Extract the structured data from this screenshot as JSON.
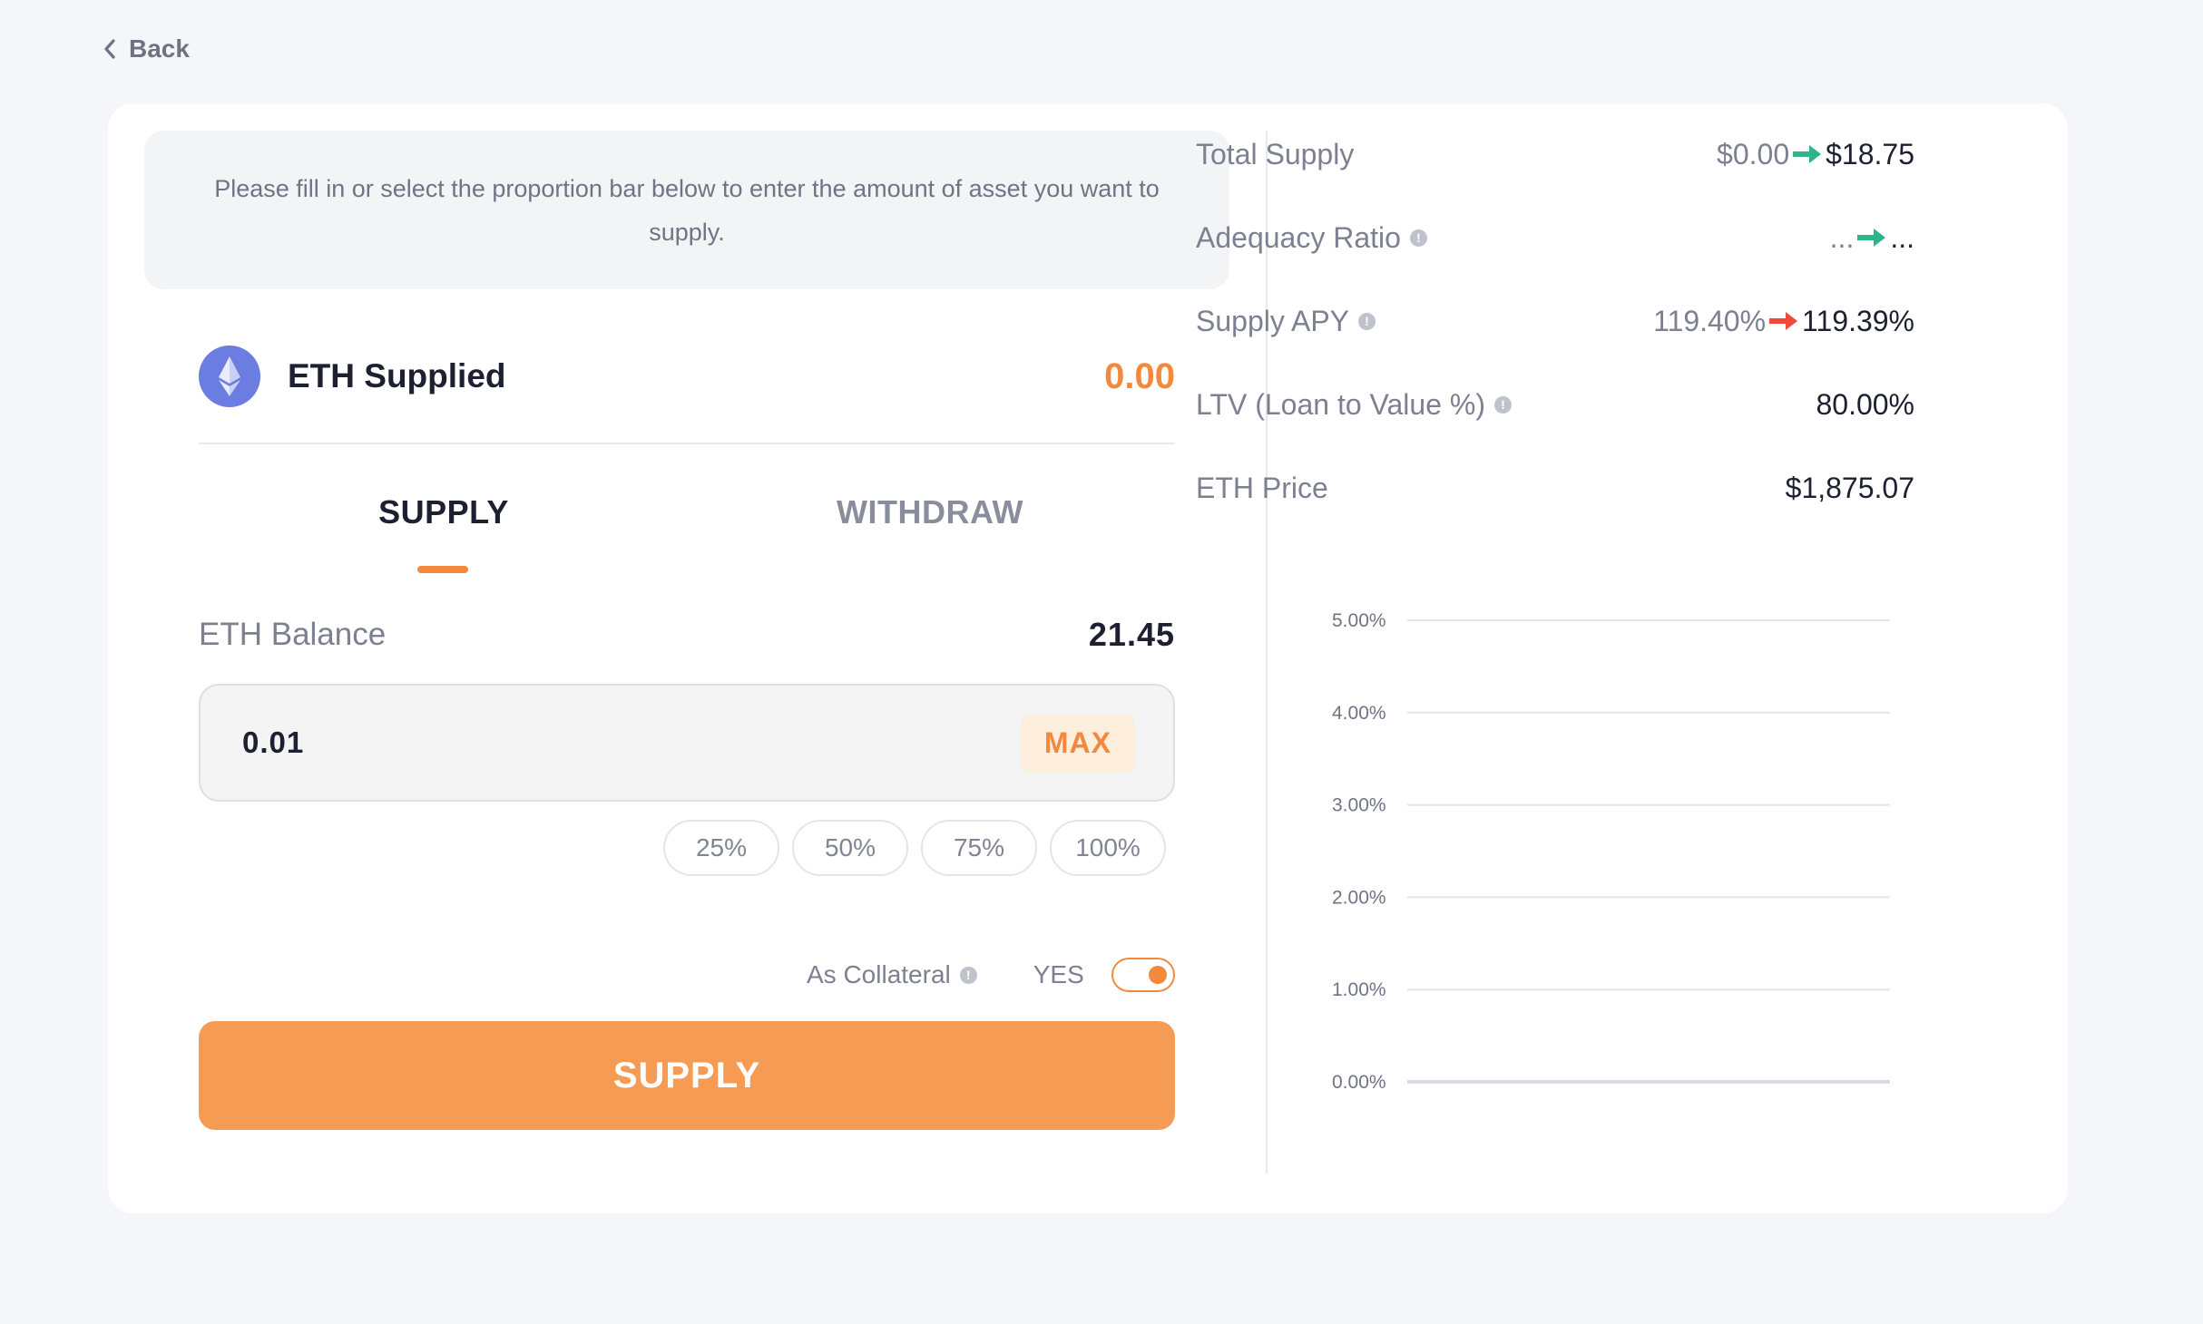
{
  "back": {
    "label": "Back"
  },
  "notice": "Please fill in or select the proportion bar below to enter the amount of asset you want to supply.",
  "asset": {
    "name": "ETH Supplied",
    "value": "0.00"
  },
  "tabs": {
    "supply": "SUPPLY",
    "withdraw": "WITHDRAW"
  },
  "balance": {
    "label": "ETH Balance",
    "value": "21.45"
  },
  "amount": {
    "value": "0.01",
    "max_label": "MAX"
  },
  "percent_buttons": [
    "25%",
    "50%",
    "75%",
    "100%"
  ],
  "collateral": {
    "label": "As Collateral",
    "state": "YES"
  },
  "supply_button": "SUPPLY",
  "stats": {
    "total_supply": {
      "label": "Total Supply",
      "old": "$0.00",
      "new": "$18.75"
    },
    "adequacy_ratio": {
      "label": "Adequacy Ratio",
      "old": "...",
      "new": "..."
    },
    "supply_apy": {
      "label": "Supply APY",
      "old": "119.40%",
      "new": "119.39%"
    },
    "ltv": {
      "label": "LTV (Loan to Value %)",
      "value": "80.00%"
    },
    "eth_price": {
      "label": "ETH Price",
      "value": "$1,875.07"
    }
  },
  "colors": {
    "accent": "#f3893d",
    "up": "#2fb38a",
    "down": "#ee4b3a"
  },
  "chart_data": {
    "type": "line",
    "title": "",
    "xlabel": "",
    "ylabel": "",
    "ylim": [
      0,
      5
    ],
    "y_ticks": [
      "5.00%",
      "4.00%",
      "3.00%",
      "2.00%",
      "1.00%",
      "0.00%"
    ],
    "y_tick_values": [
      5,
      4,
      3,
      2,
      1,
      0
    ],
    "grid": true,
    "series": []
  }
}
